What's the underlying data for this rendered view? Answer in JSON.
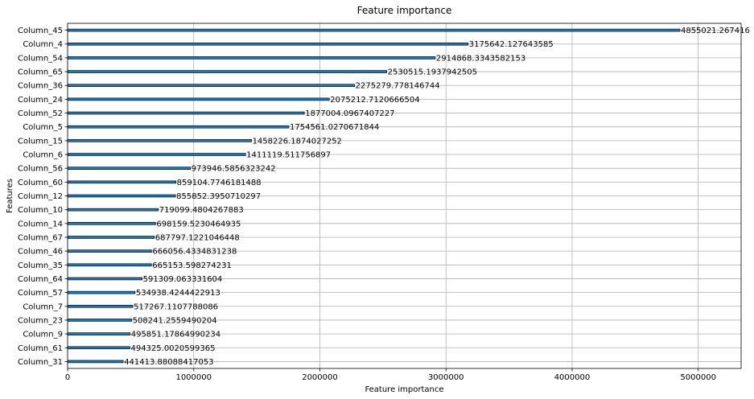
{
  "chart_data": {
    "type": "bar",
    "orientation": "horizontal",
    "title": "Feature importance",
    "xlabel": "Feature importance",
    "ylabel": "Features",
    "xlim": [
      0,
      5340000
    ],
    "xticks": [
      0,
      1000000,
      2000000,
      3000000,
      4000000,
      5000000
    ],
    "xtick_labels": [
      "0",
      "1000000",
      "2000000",
      "3000000",
      "4000000",
      "5000000"
    ],
    "grid": true,
    "categories": [
      "Column_45",
      "Column_4",
      "Column_54",
      "Column_65",
      "Column_36",
      "Column_24",
      "Column_52",
      "Column_5",
      "Column_15",
      "Column_6",
      "Column_56",
      "Column_60",
      "Column_12",
      "Column_10",
      "Column_14",
      "Column_67",
      "Column_46",
      "Column_35",
      "Column_64",
      "Column_57",
      "Column_7",
      "Column_23",
      "Column_9",
      "Column_61",
      "Column_31"
    ],
    "values": [
      4855021.267416,
      3175642.127643585,
      2914868.3343582153,
      2530515.1937942505,
      2275279.778146744,
      2075212.7120666504,
      1877004.0967407227,
      1754561.0270671844,
      1458226.1874027252,
      1411119.511756897,
      973946.5856323242,
      859104.7746181488,
      855852.3950710297,
      719099.4804267883,
      698159.5230464935,
      687797.1221046448,
      666056.4334831238,
      665153.598274231,
      591309.063331604,
      534938.4244422913,
      517267.1107788086,
      508241.2559490204,
      495851.17864990234,
      494325.0020599365,
      441413.88088417053
    ],
    "value_labels": [
      "4855021.267416",
      "3175642.127643585",
      "2914868.3343582153",
      "2530515.1937942505",
      "2275279.778146744",
      "2075212.7120666504",
      "1877004.0967407227",
      "1754561.0270671844",
      "1458226.1874027252",
      "1411119.511756897",
      "973946.5856323242",
      "859104.7746181488",
      "855852.3950710297",
      "719099.4804267883",
      "698159.5230464935",
      "687797.1221046448",
      "666056.4334831238",
      "665153.598274231",
      "591309.063331604",
      "534938.4244422913",
      "517267.1107788086",
      "508241.2559490204",
      "495851.17864990234",
      "494325.0020599365",
      "441413.88088417053"
    ],
    "colors": {
      "bar": "#1f77b4",
      "grid": "#b0b0b0"
    }
  }
}
